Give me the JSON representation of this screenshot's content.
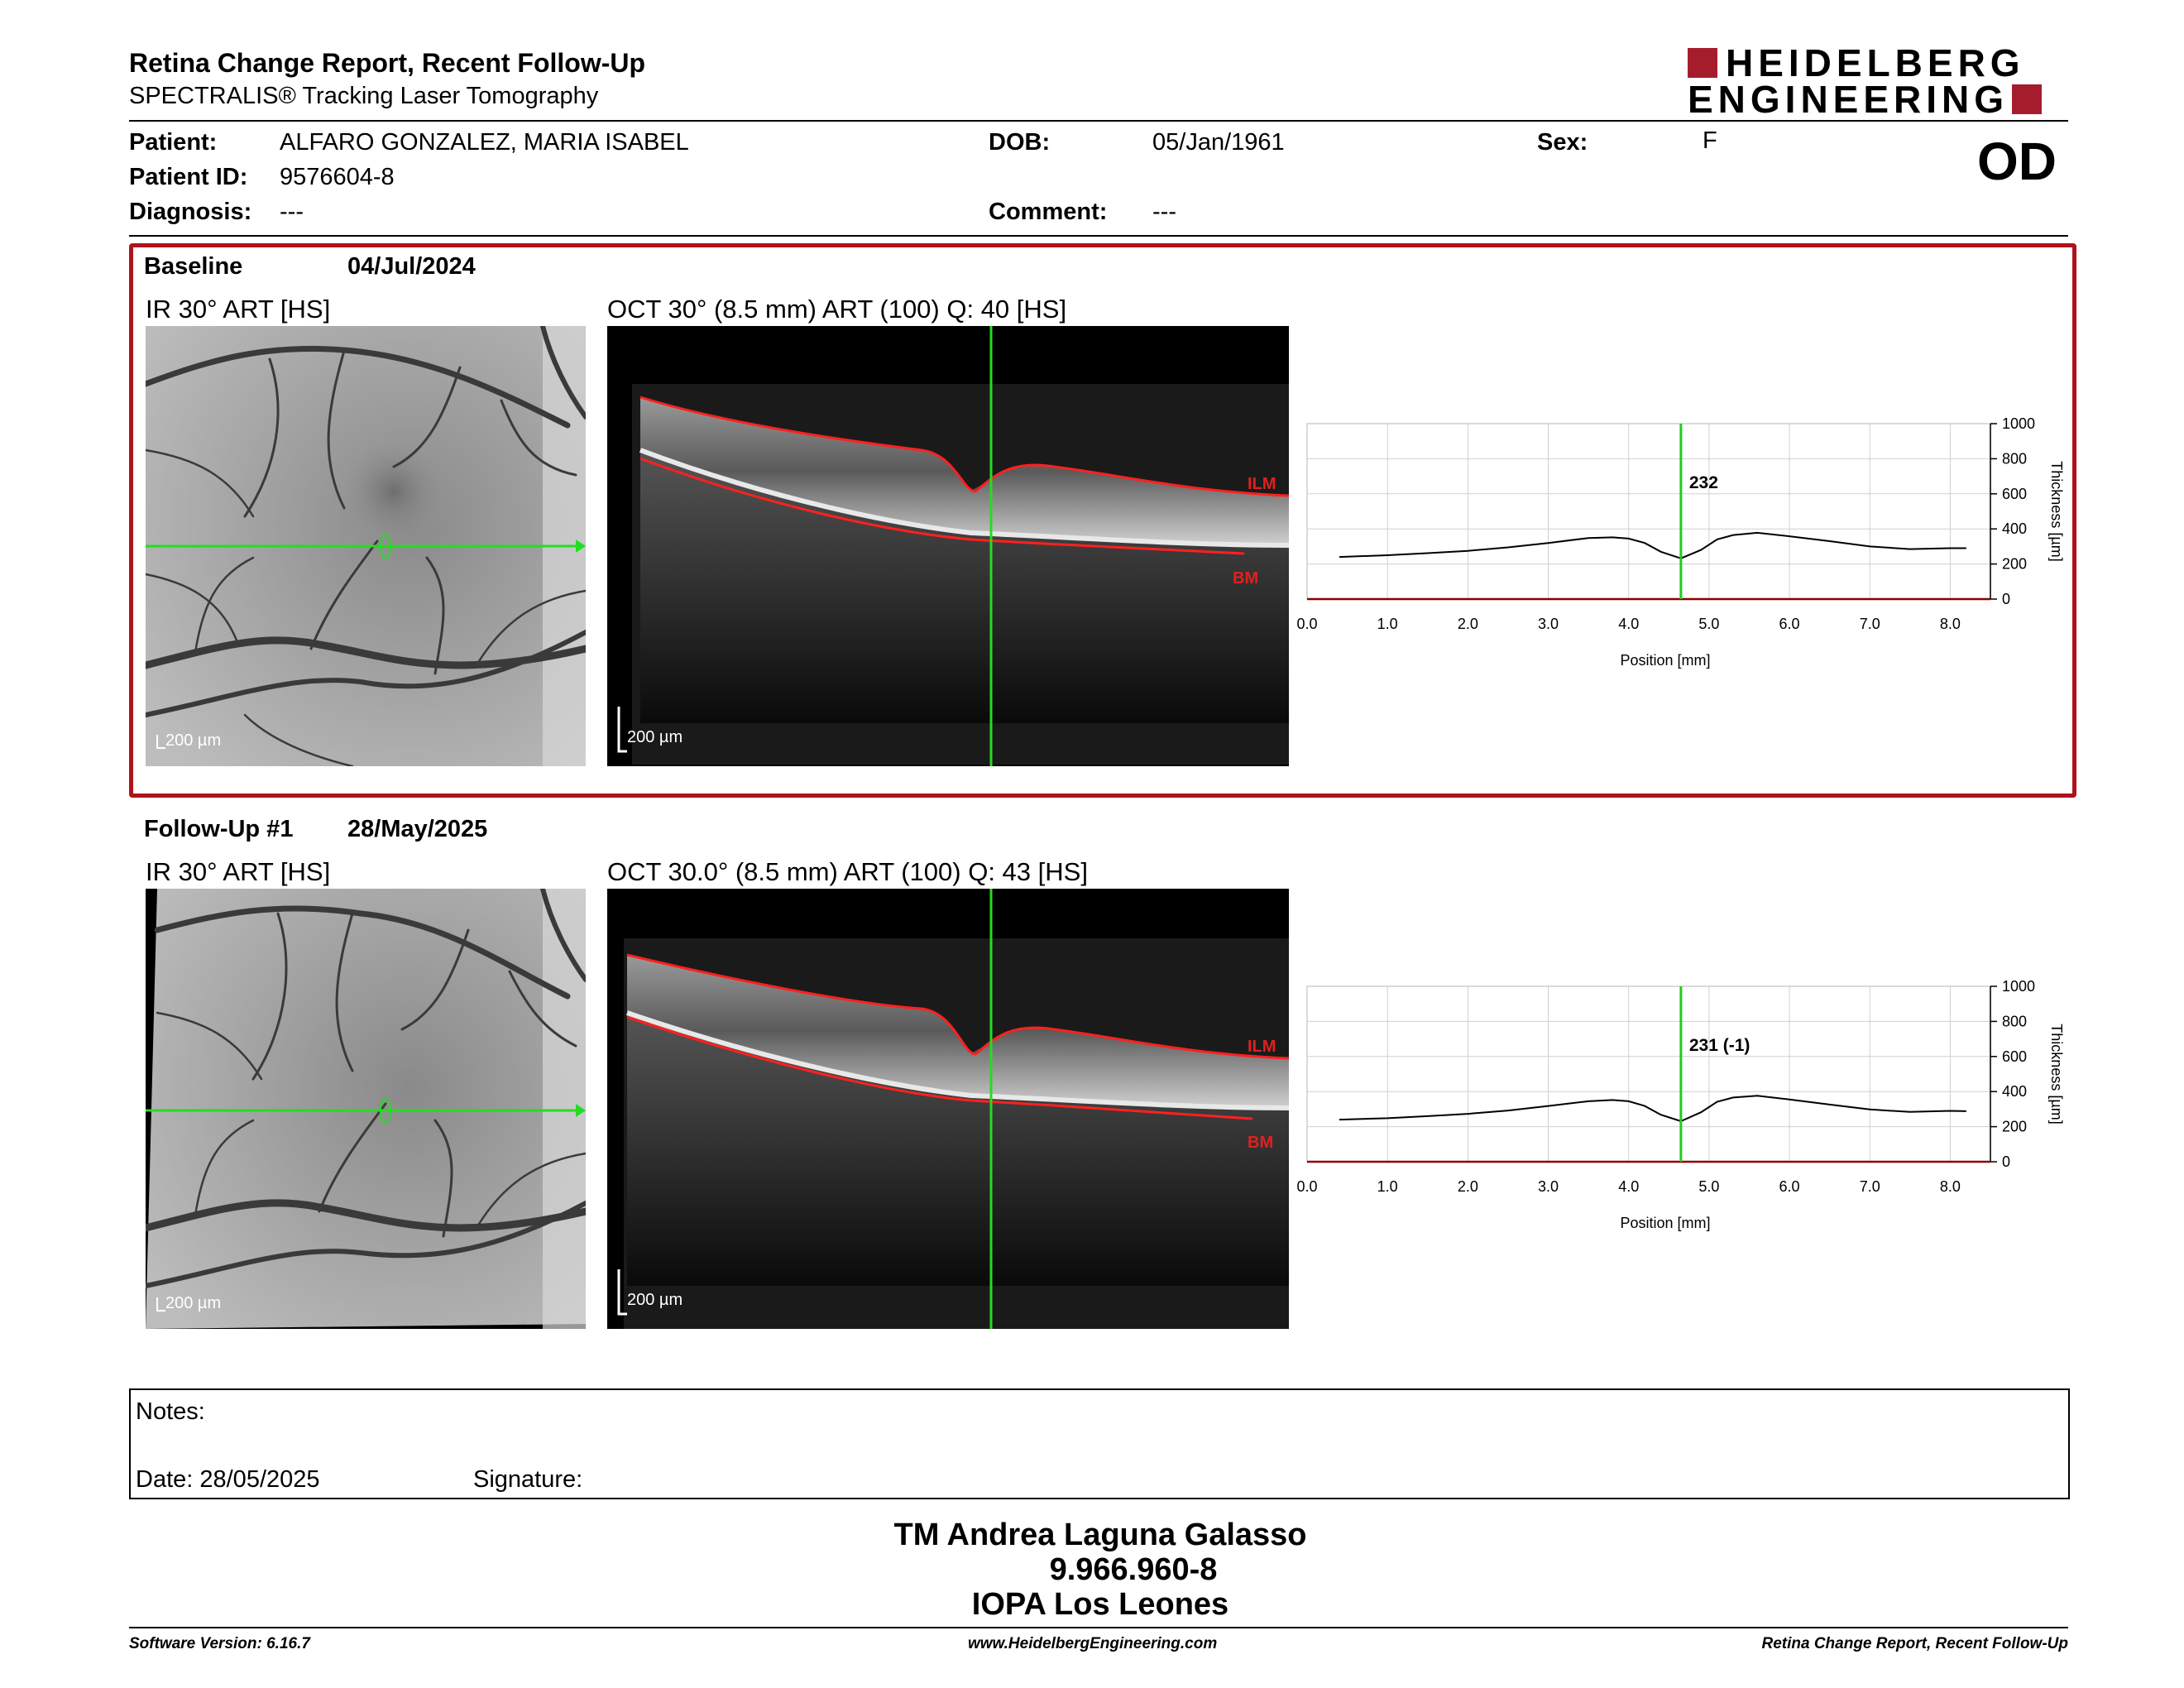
{
  "header": {
    "title": "Retina Change Report, Recent Follow-Up",
    "subtitle": "SPECTRALIS® Tracking Laser Tomography",
    "logo_line1": "HEIDELBERG",
    "logo_line2": "ENGINEERING",
    "eye": "OD"
  },
  "patient": {
    "patient_label": "Patient:",
    "patient_value": "ALFARO GONZALEZ, MARIA ISABEL",
    "id_label": "Patient ID:",
    "id_value": "9576604-8",
    "diagnosis_label": "Diagnosis:",
    "diagnosis_value": "---",
    "dob_label": "DOB:",
    "dob_value": "05/Jan/1961",
    "comment_label": "Comment:",
    "comment_value": "---",
    "sex_label": "Sex:",
    "sex_value": "F"
  },
  "baseline": {
    "label": "Baseline",
    "date": "04/Jul/2024",
    "ir_label": "IR 30° ART [HS]",
    "oct_label": "OCT 30° (8.5 mm) ART (100) Q: 40 [HS]",
    "ir_scale": "200 µm",
    "oct_scale": "200 µm",
    "ilm": "ILM",
    "bm": "BM"
  },
  "followup": {
    "label": "Follow-Up #1",
    "date": "28/May/2025",
    "ir_label": "IR 30° ART [HS]",
    "oct_label": "OCT 30.0° (8.5 mm) ART (100) Q: 43 [HS]",
    "ir_scale": "200 µm",
    "oct_scale": "200 µm",
    "ilm": "ILM",
    "bm": "BM"
  },
  "chart_data": [
    {
      "type": "line",
      "xlabel": "Position [mm]",
      "ylabel": "Thickness [µm]",
      "xlim": [
        0,
        8.5
      ],
      "ylim": [
        0,
        1000
      ],
      "xticks": [
        "0.0",
        "1.0",
        "2.0",
        "3.0",
        "4.0",
        "5.0",
        "6.0",
        "7.0",
        "8.0"
      ],
      "yticks": [
        "0",
        "200",
        "400",
        "600",
        "800",
        "1000"
      ],
      "cursor_x": 4.65,
      "cursor_label": "232",
      "x": [
        0.4,
        1.0,
        1.5,
        2.0,
        2.5,
        3.0,
        3.5,
        3.8,
        4.0,
        4.2,
        4.4,
        4.65,
        4.9,
        5.1,
        5.3,
        5.6,
        6.0,
        6.5,
        7.0,
        7.5,
        8.0,
        8.2
      ],
      "y": [
        240,
        250,
        262,
        275,
        295,
        320,
        348,
        352,
        345,
        320,
        270,
        232,
        280,
        340,
        365,
        378,
        358,
        330,
        300,
        285,
        290,
        290
      ],
      "grid": true,
      "colors": {
        "line": "#000000",
        "cursor": "#22cc22",
        "axis": "#8b0000"
      }
    },
    {
      "type": "line",
      "xlabel": "Position [mm]",
      "ylabel": "Thickness [µm]",
      "xlim": [
        0,
        8.5
      ],
      "ylim": [
        0,
        1000
      ],
      "xticks": [
        "0.0",
        "1.0",
        "2.0",
        "3.0",
        "4.0",
        "5.0",
        "6.0",
        "7.0",
        "8.0"
      ],
      "yticks": [
        "0",
        "200",
        "400",
        "600",
        "800",
        "1000"
      ],
      "cursor_x": 4.65,
      "cursor_label": "231 (-1)",
      "x": [
        0.4,
        1.0,
        1.5,
        2.0,
        2.5,
        3.0,
        3.5,
        3.8,
        4.0,
        4.2,
        4.4,
        4.65,
        4.9,
        5.1,
        5.3,
        5.6,
        6.0,
        6.5,
        7.0,
        7.5,
        8.0,
        8.2
      ],
      "y": [
        240,
        248,
        260,
        273,
        292,
        318,
        345,
        352,
        345,
        318,
        268,
        231,
        282,
        342,
        366,
        376,
        355,
        326,
        298,
        284,
        290,
        288
      ],
      "grid": true,
      "colors": {
        "line": "#000000",
        "cursor": "#22cc22",
        "axis": "#8b0000"
      }
    }
  ],
  "notes": {
    "notes_label": "Notes:",
    "date_label": "Date: 28/05/2025",
    "signature_label": "Signature:"
  },
  "signer": {
    "name": "TM Andrea Laguna Galasso",
    "id": "9.966.960-8",
    "place": "IOPA Los Leones"
  },
  "footer": {
    "version": "Software Version: 6.16.7",
    "website": "www.HeidelbergEngineering.com",
    "report": "Retina Change Report, Recent Follow-Up"
  }
}
